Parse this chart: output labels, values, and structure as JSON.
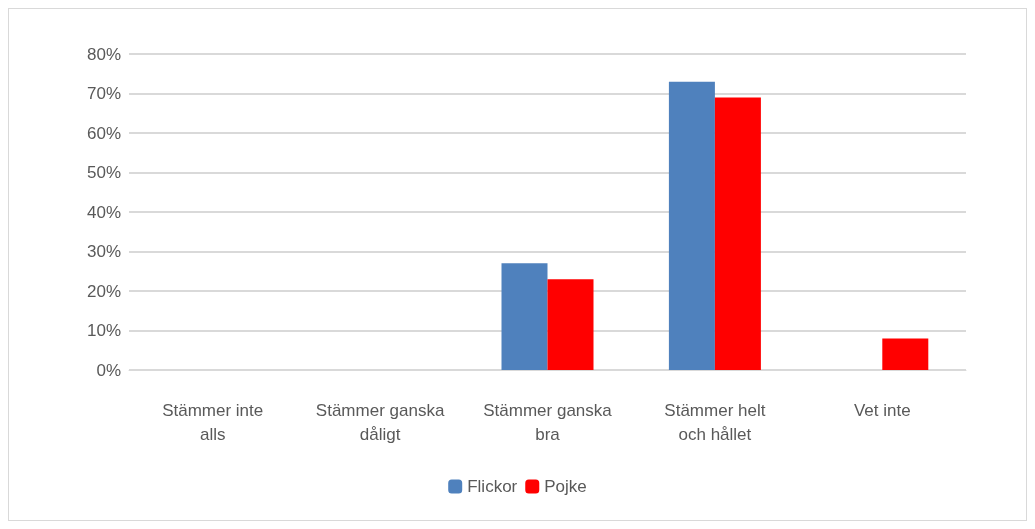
{
  "chart_data": {
    "type": "bar",
    "categories": [
      "Stämmer inte alls",
      "Stämmer ganska dåligt",
      "Stämmer ganska bra",
      "Stämmer helt och hållet",
      "Vet inte"
    ],
    "series": [
      {
        "name": "Flickor",
        "color": "#4f81bd",
        "values": [
          0,
          0,
          27,
          73,
          0
        ]
      },
      {
        "name": "Pojke",
        "color": "#ff0000",
        "values": [
          0,
          0,
          23,
          69,
          8
        ]
      }
    ],
    "ylim": [
      0,
      80
    ],
    "yticks": [
      {
        "value": 0,
        "label": "0%"
      },
      {
        "value": 10,
        "label": "10%"
      },
      {
        "value": 20,
        "label": "20%"
      },
      {
        "value": 30,
        "label": "30%"
      },
      {
        "value": 40,
        "label": "40%"
      },
      {
        "value": 50,
        "label": "50%"
      },
      {
        "value": 60,
        "label": "60%"
      },
      {
        "value": 70,
        "label": "70%"
      },
      {
        "value": 80,
        "label": "80%"
      }
    ],
    "grid": "y",
    "legend": "bottom"
  }
}
